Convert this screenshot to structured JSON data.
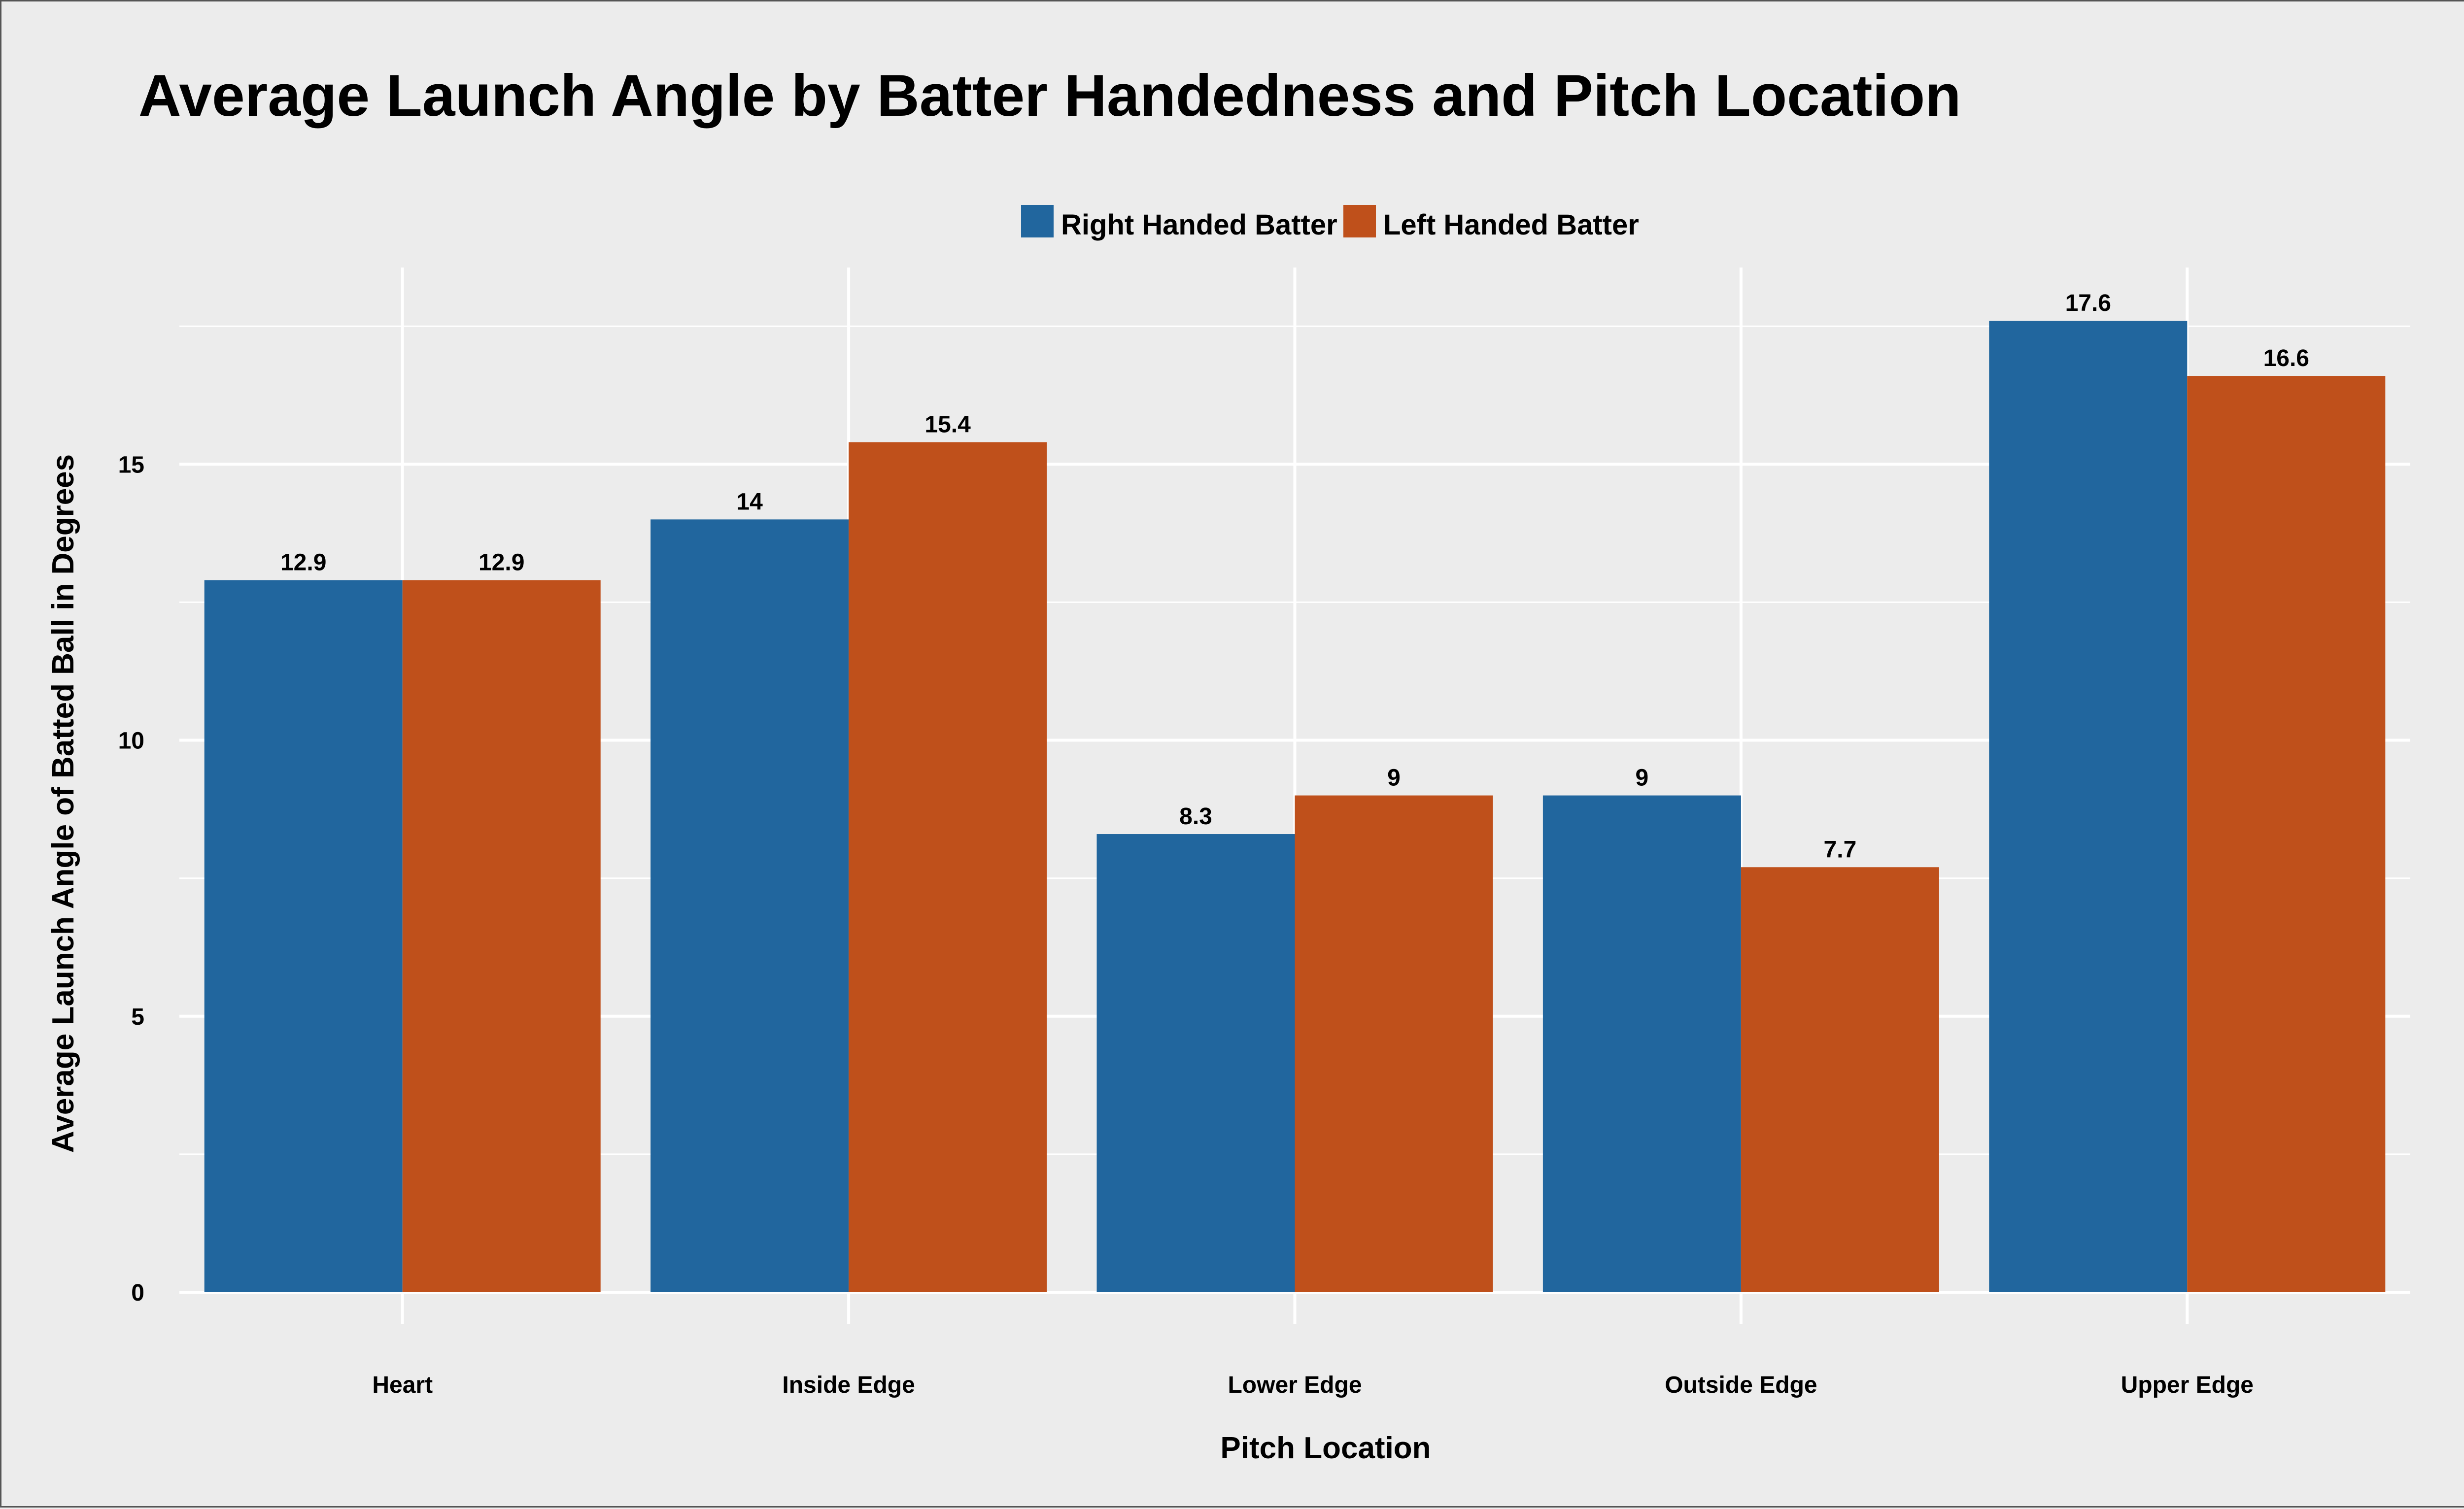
{
  "chart_data": {
    "type": "bar",
    "title": "Average Launch Angle by Batter Handedness and Pitch Location",
    "xlabel": "Pitch Location",
    "ylabel": "Average Launch Angle of Batted Ball in Degrees",
    "categories": [
      "Heart",
      "Inside Edge",
      "Lower Edge",
      "Outside Edge",
      "Upper Edge"
    ],
    "series": [
      {
        "name": "Right Handed Batter",
        "color": "#21669e",
        "values": [
          12.9,
          14,
          8.3,
          9,
          17.6
        ],
        "labels": [
          "12.9",
          "14",
          "8.3",
          "9",
          "17.6"
        ]
      },
      {
        "name": "Left Handed Batter",
        "color": "#bf501b",
        "values": [
          12.9,
          15.4,
          9,
          7.7,
          16.6
        ],
        "labels": [
          "12.9",
          "15.4",
          "9",
          "7.7",
          "16.6"
        ]
      }
    ],
    "ylim": [
      0,
      18.5
    ],
    "yticks": [
      0,
      5,
      10,
      15
    ],
    "ytick_labels": [
      "0",
      "5",
      "10",
      "15"
    ],
    "grid": true,
    "legend_position": "top"
  }
}
